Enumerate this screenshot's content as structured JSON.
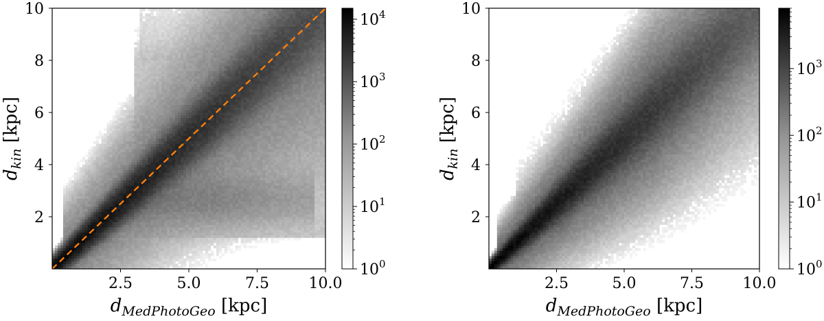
{
  "chart_data": [
    {
      "type": "heatmap",
      "subtype": "2d-histogram",
      "xlabel": {
        "symbol": "d",
        "subscript": "MedPhotoGeo",
        "unit": "[kpc]"
      },
      "ylabel": {
        "symbol": "d",
        "subscript": "kin",
        "unit": "[kpc]"
      },
      "xlim": [
        0,
        10
      ],
      "ylim": [
        0,
        10
      ],
      "x_ticks": [
        "2.5",
        "5.0",
        "7.5",
        "10.0"
      ],
      "y_ticks": [
        "2",
        "4",
        "6",
        "8",
        "10"
      ],
      "colorbar": {
        "scale": "log",
        "range": [
          1,
          15000
        ],
        "colormap": "Greys",
        "ticks": [
          {
            "base": "10",
            "exp": "0"
          },
          {
            "base": "10",
            "exp": "1"
          },
          {
            "base": "10",
            "exp": "2"
          },
          {
            "base": "10",
            "exp": "3"
          },
          {
            "base": "10",
            "exp": "4"
          }
        ]
      },
      "one_to_one_line": {
        "style": "dashed",
        "color": "#ff7f0e",
        "from": [
          0,
          0
        ],
        "to": [
          10,
          10
        ]
      },
      "density_features": [
        "strong concentration along the 1:1 line",
        "horizontal band near d_kin = 2.5-3 kpc for d_MedPhotoGeo 4-9 kpc",
        "diffuse plateau up to d_kin = 10 kpc for d_MedPhotoGeo > 3 kpc"
      ]
    },
    {
      "type": "heatmap",
      "subtype": "2d-histogram",
      "xlabel": {
        "symbol": "d",
        "subscript": "MedPhotoGeo",
        "unit": "[kpc]"
      },
      "ylabel": {
        "symbol": "d",
        "subscript": "kin",
        "unit": "[kpc]"
      },
      "xlim": [
        0,
        10
      ],
      "ylim": [
        0,
        10
      ],
      "x_ticks": [
        "2.5",
        "5.0",
        "7.5",
        "10.0"
      ],
      "y_ticks": [
        "2",
        "4",
        "6",
        "8",
        "10"
      ],
      "colorbar": {
        "scale": "log",
        "range": [
          1,
          8000
        ],
        "colormap": "Greys",
        "ticks": [
          {
            "base": "10",
            "exp": "0"
          },
          {
            "base": "10",
            "exp": "1"
          },
          {
            "base": "10",
            "exp": "2"
          },
          {
            "base": "10",
            "exp": "3"
          }
        ]
      },
      "density_features": [
        "tight concentration along the 1:1 line",
        "scatter widening with distance, extending to about 10 kpc"
      ]
    }
  ]
}
